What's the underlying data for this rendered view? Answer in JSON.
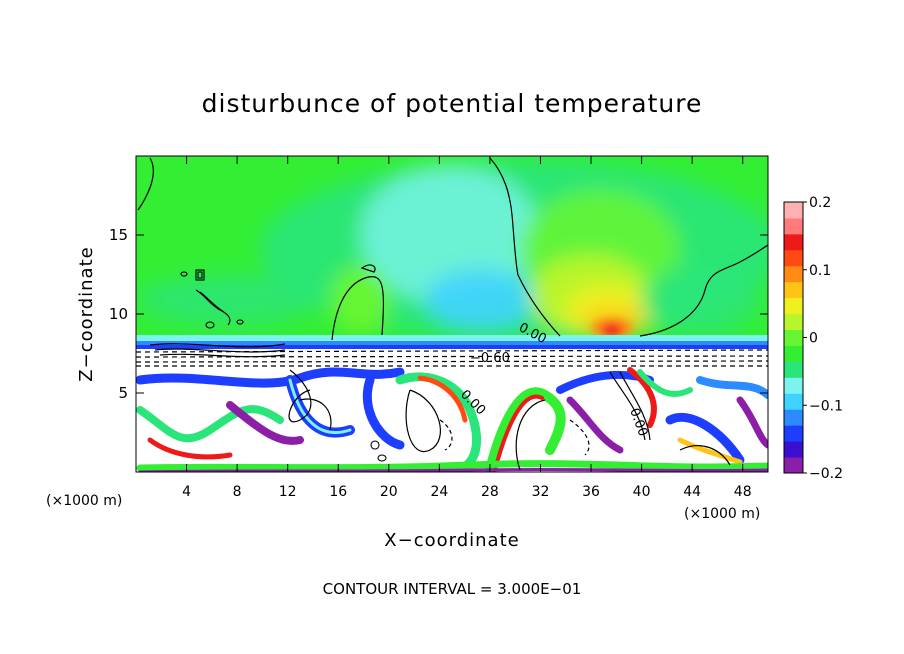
{
  "chart_data": {
    "type": "heatmap",
    "title": "disturbunce of potential temperature",
    "xlabel": "X−coordinate",
    "ylabel": "Z−coordinate",
    "x_unit_left": "(×1000 m)",
    "x_unit_right": "(×1000 m)",
    "footer": "CONTOUR INTERVAL = 3.000E−01",
    "xlim": [
      0,
      50
    ],
    "ylim": [
      0,
      20
    ],
    "x_ticks": [
      "4",
      "8",
      "12",
      "16",
      "20",
      "24",
      "28",
      "32",
      "36",
      "40",
      "44",
      "48"
    ],
    "x_tick_values": [
      4,
      8,
      12,
      16,
      20,
      24,
      28,
      32,
      36,
      40,
      44,
      48
    ],
    "y_ticks": [
      "5",
      "10",
      "15"
    ],
    "y_tick_values": [
      5,
      10,
      15
    ],
    "colorbar": {
      "range": [
        -0.2,
        0.2
      ],
      "tick_labels": [
        "0.2",
        "0.1",
        "0",
        "−0.1",
        "−0.2"
      ],
      "tick_values": [
        0.2,
        0.1,
        0,
        -0.1,
        -0.2
      ],
      "colors": [
        "#8b1fa8",
        "#3a0fd0",
        "#1d3dff",
        "#2c8cff",
        "#3fd3ff",
        "#7cf3ee",
        "#2ae57a",
        "#33ee33",
        "#66f533",
        "#b8f52a",
        "#eef020",
        "#ffc414",
        "#ff8a14",
        "#ff4a14",
        "#ee1a1a",
        "#ff7a7a",
        "#ffb0b0"
      ]
    },
    "contour_labels": [
      "0.00",
      "−0.60",
      "0.00",
      "0.00"
    ],
    "contour_label_values": [
      0.0,
      -0.6,
      0.0,
      0.0
    ]
  }
}
